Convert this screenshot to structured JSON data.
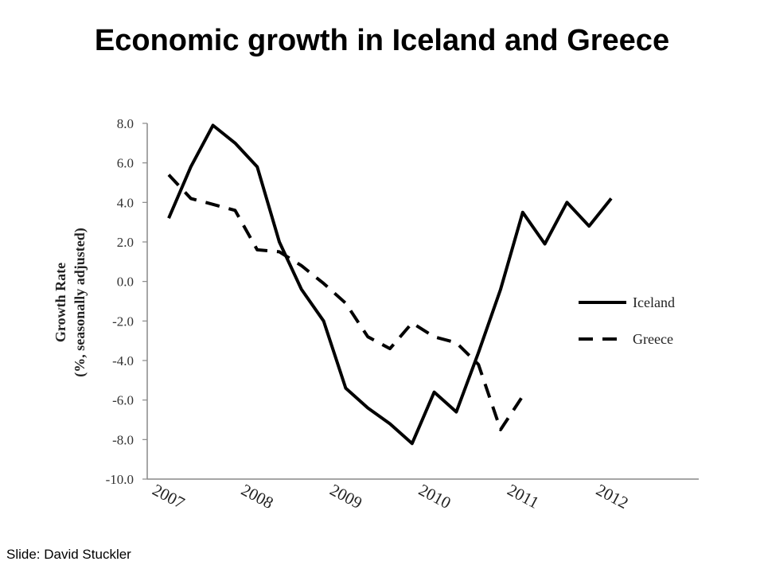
{
  "slide": {
    "title": "Economic growth in Iceland and Greece",
    "credit": "Slide:  David Stuckler"
  },
  "chart_data": {
    "type": "line",
    "ylabel_line1": "Growth Rate",
    "ylabel_line2": "(%, seasonally adjusted)",
    "ylim": [
      -10.0,
      8.0
    ],
    "yticks": [
      "8.0",
      "6.0",
      "4.0",
      "2.0",
      "0.0",
      "-2.0",
      "-4.0",
      "-6.0",
      "-8.0",
      "-10.0"
    ],
    "x_labels": [
      "2007",
      "2008",
      "2009",
      "2010",
      "2011",
      "2012"
    ],
    "grid": false,
    "legend_position": "right",
    "series": [
      {
        "name": "Iceland",
        "style": "solid",
        "color": "#000000",
        "values": [
          3.2,
          5.8,
          7.9,
          7.0,
          5.8,
          2.0,
          -0.4,
          -2.0,
          -5.4,
          -6.4,
          -7.2,
          -8.2,
          -5.6,
          -6.6,
          -3.6,
          -0.4,
          3.5,
          1.9,
          4.0,
          2.8,
          4.2
        ]
      },
      {
        "name": "Greece",
        "style": "dashed",
        "color": "#000000",
        "values": [
          5.4,
          4.2,
          3.9,
          3.6,
          1.6,
          1.5,
          0.8,
          -0.1,
          -1.1,
          -2.8,
          -3.4,
          -2.1,
          -2.8,
          -3.1,
          -4.2,
          -7.5,
          -5.8
        ]
      }
    ]
  }
}
